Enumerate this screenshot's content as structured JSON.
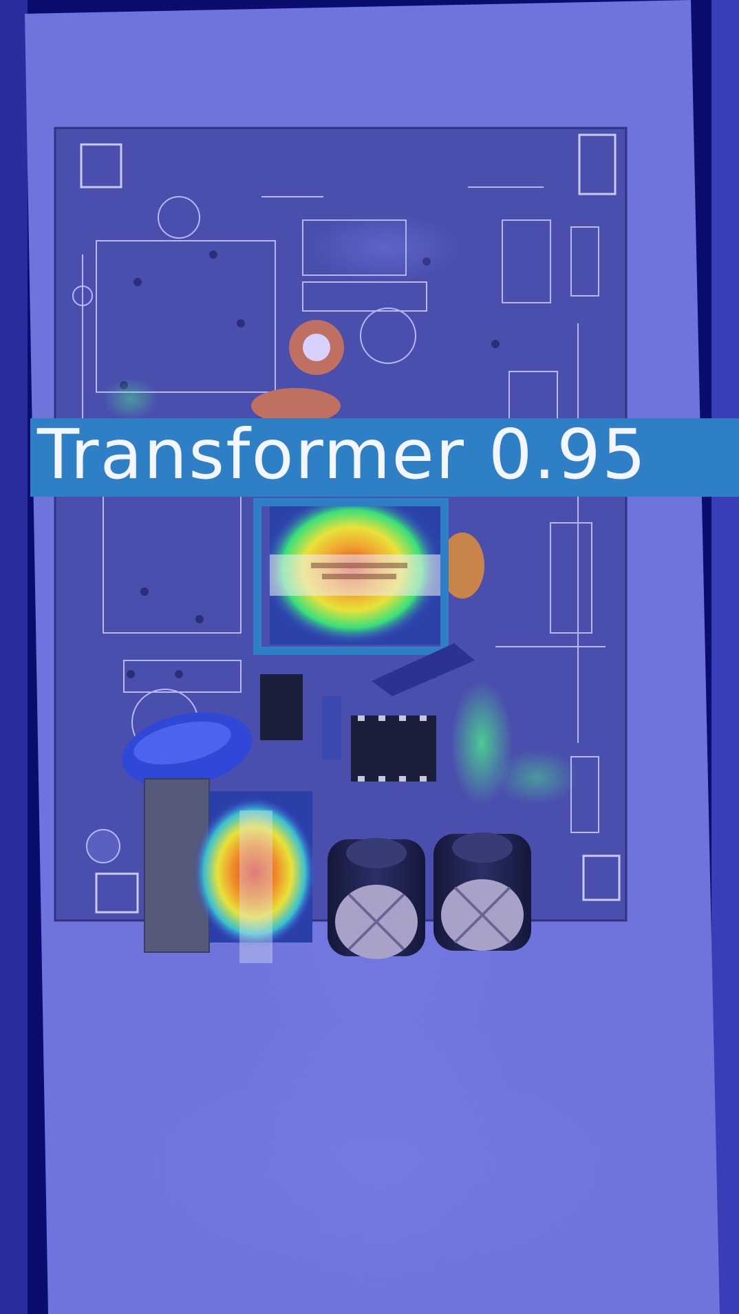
{
  "detection": {
    "class_name": "Transformer",
    "confidence": "0.95",
    "label": "Transformer 0.95",
    "box_color": "#2f7fc6",
    "label_text_color": "#f3f6ff"
  },
  "image": {
    "subject": "power-supply circuit board",
    "overlay": "heatmap",
    "colors": {
      "background": "#0a0d6e",
      "paper": "#6f74dc",
      "board": "#4a4fae",
      "heat_low": "#3a3fd0",
      "heat_mid": "#39e07a",
      "heat_high": "#e8e23a",
      "heat_peak": "#e03a2a"
    }
  }
}
